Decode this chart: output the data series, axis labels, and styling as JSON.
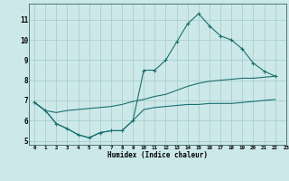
{
  "xlabel": "Humidex (Indice chaleur)",
  "ylabel": "",
  "background_color": "#cce8e8",
  "grid_color": "#aacece",
  "line_color": "#1a7070",
  "xlim": [
    -0.5,
    23
  ],
  "ylim": [
    4.8,
    11.8
  ],
  "yticks": [
    5,
    6,
    7,
    8,
    9,
    10,
    11
  ],
  "xticks": [
    0,
    1,
    2,
    3,
    4,
    5,
    6,
    7,
    8,
    9,
    10,
    11,
    12,
    13,
    14,
    15,
    16,
    17,
    18,
    19,
    20,
    21,
    22,
    23
  ],
  "curve_max": [
    [
      0,
      6.9
    ],
    [
      1,
      6.5
    ],
    [
      2,
      5.85
    ],
    [
      3,
      5.6
    ],
    [
      4,
      5.3
    ],
    [
      5,
      5.15
    ],
    [
      6,
      5.4
    ],
    [
      7,
      5.5
    ],
    [
      8,
      5.5
    ],
    [
      9,
      6.0
    ],
    [
      10,
      8.5
    ],
    [
      11,
      8.5
    ],
    [
      12,
      9.0
    ],
    [
      13,
      9.9
    ],
    [
      14,
      10.8
    ],
    [
      15,
      11.3
    ],
    [
      16,
      10.7
    ],
    [
      17,
      10.2
    ],
    [
      18,
      10.0
    ],
    [
      19,
      9.55
    ],
    [
      20,
      8.85
    ],
    [
      21,
      8.45
    ],
    [
      22,
      8.2
    ]
  ],
  "curve_mean": [
    [
      0,
      6.9
    ],
    [
      1,
      6.5
    ],
    [
      2,
      6.4
    ],
    [
      3,
      6.5
    ],
    [
      4,
      6.55
    ],
    [
      5,
      6.6
    ],
    [
      6,
      6.65
    ],
    [
      7,
      6.7
    ],
    [
      8,
      6.8
    ],
    [
      9,
      6.95
    ],
    [
      10,
      7.05
    ],
    [
      11,
      7.2
    ],
    [
      12,
      7.3
    ],
    [
      13,
      7.5
    ],
    [
      14,
      7.7
    ],
    [
      15,
      7.85
    ],
    [
      16,
      7.95
    ],
    [
      17,
      8.0
    ],
    [
      18,
      8.05
    ],
    [
      19,
      8.1
    ],
    [
      20,
      8.1
    ],
    [
      21,
      8.15
    ],
    [
      22,
      8.2
    ]
  ],
  "curve_min": [
    [
      0,
      6.9
    ],
    [
      1,
      6.5
    ],
    [
      2,
      5.85
    ],
    [
      3,
      5.6
    ],
    [
      4,
      5.3
    ],
    [
      5,
      5.15
    ],
    [
      6,
      5.4
    ],
    [
      7,
      5.5
    ],
    [
      8,
      5.5
    ],
    [
      9,
      6.0
    ],
    [
      10,
      6.55
    ],
    [
      11,
      6.65
    ],
    [
      12,
      6.7
    ],
    [
      13,
      6.75
    ],
    [
      14,
      6.8
    ],
    [
      15,
      6.8
    ],
    [
      16,
      6.85
    ],
    [
      17,
      6.85
    ],
    [
      18,
      6.85
    ],
    [
      19,
      6.9
    ],
    [
      20,
      6.95
    ],
    [
      21,
      7.0
    ],
    [
      22,
      7.05
    ]
  ]
}
